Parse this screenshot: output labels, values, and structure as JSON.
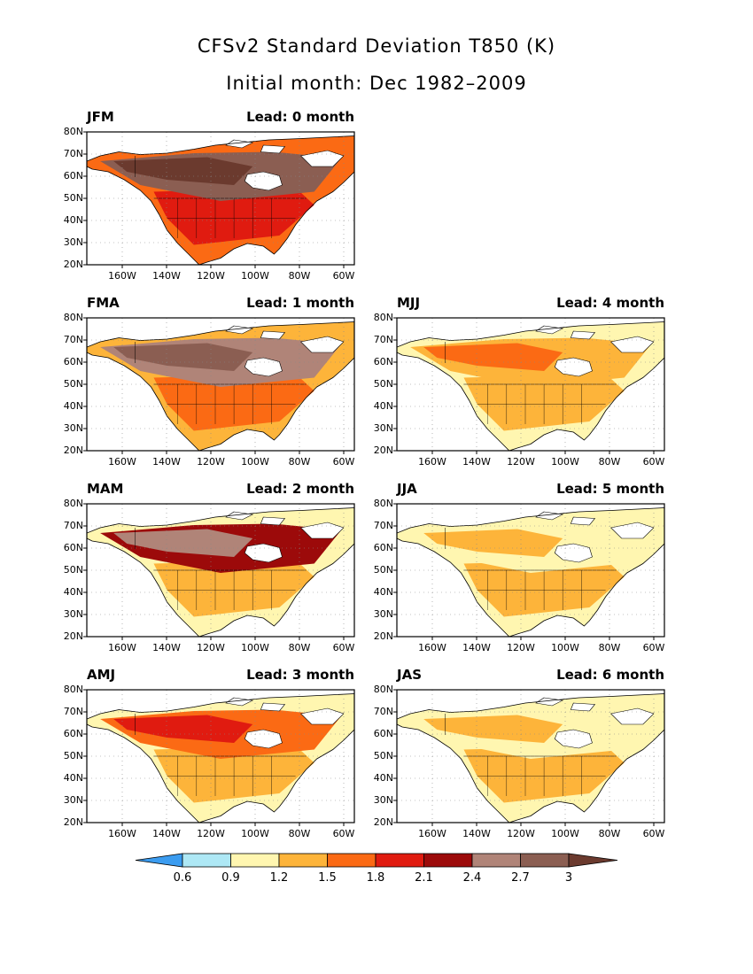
{
  "title": "CFSv2 Standard Deviation T850 (K)",
  "subtitle": "Initial month: Dec 1982–2009",
  "lat_labels": [
    "80N",
    "70N",
    "60N",
    "50N",
    "40N",
    "30N",
    "20N"
  ],
  "lon_labels": [
    "160W",
    "140W",
    "120W",
    "100W",
    "80W",
    "60W"
  ],
  "colorbar": {
    "labels": [
      "0.6",
      "0.9",
      "1.2",
      "1.5",
      "1.8",
      "2.1",
      "2.4",
      "2.7",
      "3"
    ],
    "colors": [
      "#3b9cf0",
      "#aee8f5",
      "#fff6b0",
      "#fdb43a",
      "#fb6a14",
      "#e01b10",
      "#9c0a0a",
      "#b08478",
      "#8b5e52",
      "#6b3a2e"
    ]
  },
  "panels": [
    {
      "season": "JFM",
      "lead": "Lead: 0 month",
      "level": 8
    },
    {
      "season": "FMA",
      "lead": "Lead: 1 month",
      "level": 7
    },
    {
      "season": "MAM",
      "lead": "Lead: 2 month",
      "level": 6
    },
    {
      "season": "AMJ",
      "lead": "Lead: 3 month",
      "level": 4
    },
    {
      "season": "MJJ",
      "lead": "Lead: 4 month",
      "level": 3
    },
    {
      "season": "JJA",
      "lead": "Lead: 5 month",
      "level": 2
    },
    {
      "season": "JAS",
      "lead": "Lead: 6 month",
      "level": 2
    }
  ]
}
